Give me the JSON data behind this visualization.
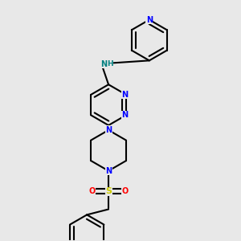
{
  "bg_color": "#e8e8e8",
  "bond_color": "#000000",
  "N_color": "#0000ff",
  "NH_color": "#008080",
  "S_color": "#cccc00",
  "O_color": "#ff0000",
  "bond_width": 1.5,
  "dbo": 0.008,
  "fig_size": [
    3.0,
    3.0
  ],
  "dpi": 100,
  "xlim": [
    0,
    1
  ],
  "ylim": [
    0,
    1
  ]
}
